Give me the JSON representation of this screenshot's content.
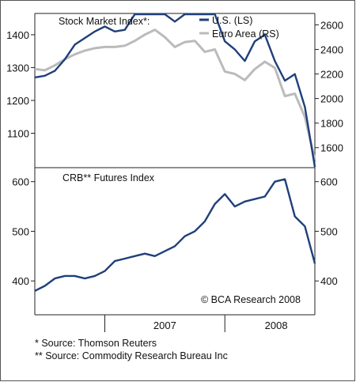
{
  "chart_data": [
    {
      "type": "line",
      "title": "Stock Market Index*:",
      "xlabel": "",
      "x_ticks": [
        "2007",
        "2008"
      ],
      "y_left": {
        "ticks": [
          1100,
          1200,
          1300,
          1400
        ],
        "ylim": [
          1000,
          1460
        ]
      },
      "y_right": {
        "ticks": [
          1600,
          1800,
          2000,
          2200,
          2400,
          2600
        ],
        "ylim": [
          1450,
          2680
        ]
      },
      "legend_position": "top-right",
      "series": [
        {
          "name": "U.S. (LS)",
          "axis": "left",
          "color": "#1f3f7a",
          "x": [
            "2006-06",
            "2006-07",
            "2006-08",
            "2006-09",
            "2006-10",
            "2006-11",
            "2006-12",
            "2007-01",
            "2007-02",
            "2007-03",
            "2007-04",
            "2007-05",
            "2007-06",
            "2007-07",
            "2007-08",
            "2007-09",
            "2007-10",
            "2007-11",
            "2007-12",
            "2008-01",
            "2008-02",
            "2008-03",
            "2008-04",
            "2008-05",
            "2008-06",
            "2008-07",
            "2008-08",
            "2008-09",
            "2008-10"
          ],
          "values": [
            1270,
            1275,
            1290,
            1325,
            1370,
            1390,
            1410,
            1425,
            1410,
            1415,
            1470,
            1495,
            1510,
            1490,
            1440,
            1510,
            1530,
            1465,
            1470,
            1380,
            1355,
            1320,
            1380,
            1400,
            1320,
            1260,
            1280,
            1180,
            905
          ]
        },
        {
          "name": "Euro Area (RS)",
          "axis": "right",
          "color": "#bbbbbb",
          "x": [
            "2006-06",
            "2006-07",
            "2006-08",
            "2006-09",
            "2006-10",
            "2006-11",
            "2006-12",
            "2007-01",
            "2007-02",
            "2007-03",
            "2007-04",
            "2007-05",
            "2007-06",
            "2007-07",
            "2007-08",
            "2007-09",
            "2007-10",
            "2007-11",
            "2007-12",
            "2008-01",
            "2008-02",
            "2008-03",
            "2008-04",
            "2008-05",
            "2008-06",
            "2008-07",
            "2008-08",
            "2008-09",
            "2008-10"
          ],
          "values": [
            2240,
            2230,
            2270,
            2320,
            2360,
            2390,
            2410,
            2420,
            2420,
            2430,
            2470,
            2520,
            2560,
            2500,
            2420,
            2460,
            2470,
            2380,
            2400,
            2220,
            2200,
            2150,
            2240,
            2300,
            2250,
            2020,
            2040,
            1850,
            1500
          ]
        }
      ]
    },
    {
      "type": "line",
      "title": "CRB** Futures Index",
      "xlabel": "",
      "x_ticks": [
        "2007",
        "2008"
      ],
      "y_left": {
        "ticks": [
          400,
          500,
          600
        ],
        "ylim": [
          335,
          625
        ]
      },
      "y_right": {
        "ticks": [
          400,
          500,
          600
        ],
        "ylim": [
          335,
          625
        ]
      },
      "series": [
        {
          "name": "",
          "axis": "left",
          "color": "#1f3f7a",
          "x": [
            "2006-06",
            "2006-07",
            "2006-08",
            "2006-09",
            "2006-10",
            "2006-11",
            "2006-12",
            "2007-01",
            "2007-02",
            "2007-03",
            "2007-04",
            "2007-05",
            "2007-06",
            "2007-07",
            "2007-08",
            "2007-09",
            "2007-10",
            "2007-11",
            "2007-12",
            "2008-01",
            "2008-02",
            "2008-03",
            "2008-04",
            "2008-05",
            "2008-06",
            "2008-07",
            "2008-08",
            "2008-09",
            "2008-10"
          ],
          "values": [
            380,
            390,
            405,
            410,
            410,
            405,
            410,
            420,
            440,
            445,
            450,
            455,
            450,
            460,
            470,
            490,
            500,
            520,
            555,
            575,
            550,
            560,
            565,
            570,
            600,
            605,
            530,
            510,
            435
          ]
        }
      ]
    }
  ],
  "credit": "© BCA Research 2008",
  "footnotes": [
    "* Source: Thomson Reuters",
    "** Source: Commodity Research Bureau Inc"
  ]
}
